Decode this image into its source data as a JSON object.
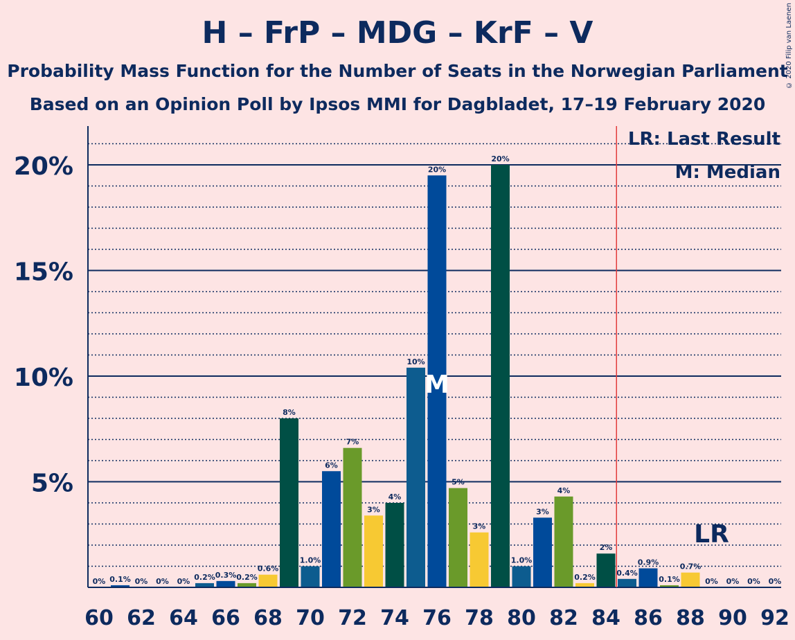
{
  "header": {
    "title": "H – FrP – MDG – KrF – V",
    "subtitle1": "Probability Mass Function for the Number of Seats in the Norwegian Parliament",
    "subtitle2": "Based on an Opinion Poll by Ipsos MMI for Dagbladet, 17–19 February 2020",
    "copyright": "© 2020 Filip van Laenen"
  },
  "legend": {
    "last_result": "LR: Last Result",
    "median": "M: Median"
  },
  "markers": {
    "median_label": "M",
    "median_seat": 76,
    "last_result_label": "LR",
    "last_result_seat": 89,
    "majority_line_seat": 84.5
  },
  "colors": {
    "background": "#fde4e4",
    "text": "#0d2a5e",
    "majority_line": "#e33b3b",
    "party_cycle": [
      "#0d5c8f",
      "#004a9a",
      "#6a9a2a",
      "#f7c933",
      "#004f45"
    ]
  },
  "chart_data": {
    "type": "bar",
    "xlim": [
      60,
      92
    ],
    "ylim": [
      0,
      21
    ],
    "yticks": [
      {
        "value": 5,
        "label": "5%"
      },
      {
        "value": 10,
        "label": "10%"
      },
      {
        "value": 15,
        "label": "15%"
      },
      {
        "value": 20,
        "label": "20%"
      }
    ],
    "xtick_labels": [
      "60",
      "62",
      "64",
      "66",
      "68",
      "70",
      "72",
      "74",
      "76",
      "78",
      "80",
      "82",
      "84",
      "86",
      "88",
      "90",
      "92"
    ],
    "bars": [
      {
        "seat": 60,
        "value": 0.0,
        "label": "0%",
        "color": "#004f45"
      },
      {
        "seat": 61,
        "value": 0.1,
        "label": "0.1%",
        "color": "#004a9a"
      },
      {
        "seat": 62,
        "value": 0.0,
        "label": "0%",
        "color": "#004a9a"
      },
      {
        "seat": 63,
        "value": 0.0,
        "label": "0%",
        "color": "#6a9a2a"
      },
      {
        "seat": 64,
        "value": 0.0,
        "label": "0%",
        "color": "#f7c933"
      },
      {
        "seat": 65,
        "value": 0.2,
        "label": "0.2%",
        "color": "#0d5c8f"
      },
      {
        "seat": 66,
        "value": 0.3,
        "label": "0.3%",
        "color": "#004a9a"
      },
      {
        "seat": 67,
        "value": 0.2,
        "label": "0.2%",
        "color": "#6a9a2a"
      },
      {
        "seat": 68,
        "value": 0.6,
        "label": "0.6%",
        "color": "#f7c933"
      },
      {
        "seat": 69,
        "value": 8.0,
        "label": "8%",
        "color": "#004f45"
      },
      {
        "seat": 70,
        "value": 1.0,
        "label": "1.0%",
        "color": "#0d5c8f"
      },
      {
        "seat": 71,
        "value": 5.5,
        "label": "6%",
        "color": "#004a9a"
      },
      {
        "seat": 72,
        "value": 6.6,
        "label": "7%",
        "color": "#6a9a2a"
      },
      {
        "seat": 73,
        "value": 3.4,
        "label": "3%",
        "color": "#f7c933"
      },
      {
        "seat": 74,
        "value": 4.0,
        "label": "4%",
        "color": "#004f45"
      },
      {
        "seat": 75,
        "value": 10.4,
        "label": "10%",
        "color": "#0d5c8f"
      },
      {
        "seat": 76,
        "value": 19.5,
        "label": "20%",
        "color": "#004a9a"
      },
      {
        "seat": 77,
        "value": 4.7,
        "label": "5%",
        "color": "#6a9a2a"
      },
      {
        "seat": 78,
        "value": 2.6,
        "label": "3%",
        "color": "#f7c933"
      },
      {
        "seat": 79,
        "value": 20.0,
        "label": "20%",
        "color": "#004f45"
      },
      {
        "seat": 80,
        "value": 1.0,
        "label": "1.0%",
        "color": "#0d5c8f"
      },
      {
        "seat": 81,
        "value": 3.3,
        "label": "3%",
        "color": "#004a9a"
      },
      {
        "seat": 82,
        "value": 4.3,
        "label": "4%",
        "color": "#6a9a2a"
      },
      {
        "seat": 83,
        "value": 0.2,
        "label": "0.2%",
        "color": "#f7c933"
      },
      {
        "seat": 84,
        "value": 1.6,
        "label": "2%",
        "color": "#004f45"
      },
      {
        "seat": 85,
        "value": 0.4,
        "label": "0.4%",
        "color": "#0d5c8f"
      },
      {
        "seat": 86,
        "value": 0.9,
        "label": "0.9%",
        "color": "#004a9a"
      },
      {
        "seat": 87,
        "value": 0.1,
        "label": "0.1%",
        "color": "#6a9a2a"
      },
      {
        "seat": 88,
        "value": 0.7,
        "label": "0.7%",
        "color": "#f7c933"
      },
      {
        "seat": 89,
        "value": 0.0,
        "label": "0%",
        "color": "#004f45"
      },
      {
        "seat": 90,
        "value": 0.0,
        "label": "0%",
        "color": "#0d5c8f"
      },
      {
        "seat": 91,
        "value": 0.0,
        "label": "0%",
        "color": "#004a9a"
      },
      {
        "seat": 92,
        "value": 0.0,
        "label": "0%",
        "color": "#6a9a2a"
      }
    ]
  }
}
